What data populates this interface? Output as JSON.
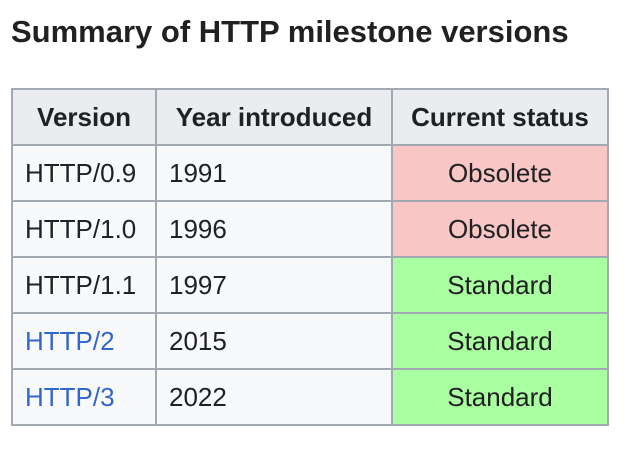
{
  "title": "Summary of HTTP milestone versions",
  "table": {
    "header": [
      "Version",
      "Year introduced",
      "Current status"
    ],
    "rows": [
      [
        "HTTP/0.9",
        "1991",
        "Obsolete"
      ],
      [
        "HTTP/1.0",
        "1996",
        "Obsolete"
      ],
      [
        "HTTP/1.1",
        "1997",
        "Standard"
      ],
      [
        "HTTP/2",
        "2015",
        "Standard"
      ],
      [
        "HTTP/3",
        "2022",
        "Standard"
      ]
    ]
  }
}
